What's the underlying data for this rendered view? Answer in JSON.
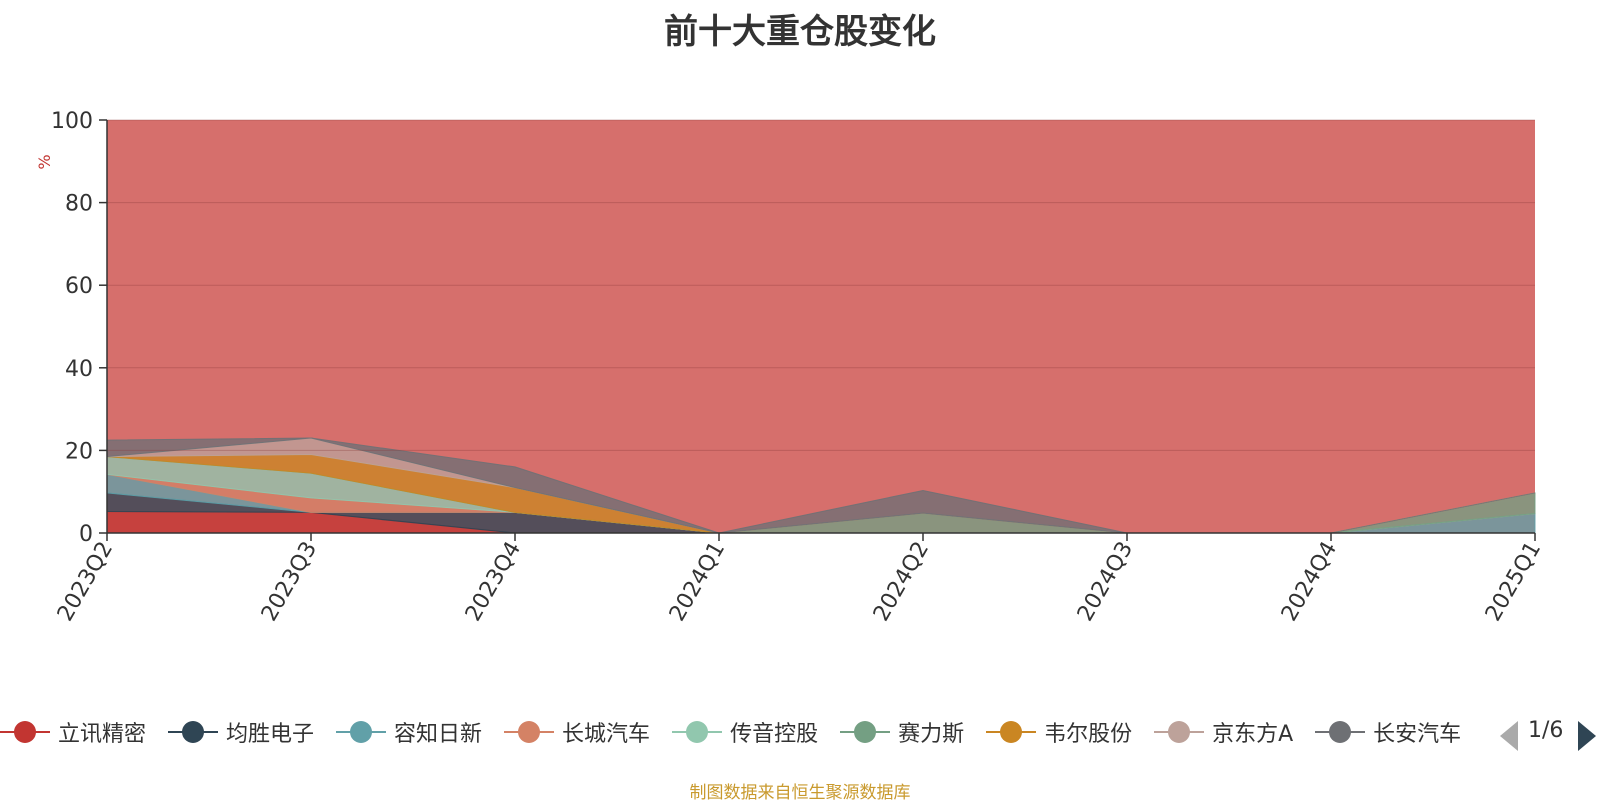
{
  "title": "前十大重仓股变化",
  "source_note": "制图数据来自恒生聚源数据库",
  "pager": {
    "text": "1/6"
  },
  "chart_data": {
    "type": "area",
    "stacked": true,
    "normalized_percent": true,
    "ylabel": "%",
    "ylim": [
      0,
      100
    ],
    "y_ticks": [
      "0",
      "20",
      "40",
      "60",
      "80",
      "100"
    ],
    "categories": [
      "2023Q2",
      "2023Q3",
      "2023Q4",
      "2024Q1",
      "2024Q2",
      "2024Q3",
      "2024Q4",
      "2025Q1"
    ],
    "grid": true,
    "legend_position": "bottom",
    "series": [
      {
        "name": "立讯精密",
        "color": "#c23531",
        "values": [
          5.2,
          5.0,
          0,
          0,
          0,
          0,
          0,
          0
        ]
      },
      {
        "name": "均胜电子",
        "color": "#2f4554",
        "values": [
          4.5,
          0,
          5.0,
          0,
          0,
          0,
          0,
          0
        ]
      },
      {
        "name": "容知日新",
        "color": "#61a0a8",
        "values": [
          4.5,
          0,
          0,
          0,
          0,
          0,
          0,
          4.7
        ]
      },
      {
        "name": "长城汽车",
        "color": "#d48265",
        "values": [
          0,
          3.5,
          0,
          0,
          0,
          0,
          0,
          0
        ]
      },
      {
        "name": "传音控股",
        "color": "#91c7ae",
        "values": [
          4.3,
          6.0,
          0,
          0,
          0,
          0,
          0,
          0
        ]
      },
      {
        "name": "赛力斯",
        "color": "#749f83",
        "values": [
          0,
          0,
          0,
          0,
          4.8,
          0,
          0,
          5.0
        ]
      },
      {
        "name": "韦尔股份",
        "color": "#ca8622",
        "values": [
          0,
          4.5,
          6.0,
          0,
          0,
          0,
          0,
          0
        ]
      },
      {
        "name": "京东方A",
        "color": "#bda29a",
        "values": [
          0,
          4.0,
          0,
          0,
          0,
          0,
          0,
          0
        ]
      },
      {
        "name": "长安汽车",
        "color": "#6e7074",
        "values": [
          4.0,
          0,
          5.0,
          0,
          5.5,
          0,
          0,
          0
        ]
      }
    ]
  }
}
